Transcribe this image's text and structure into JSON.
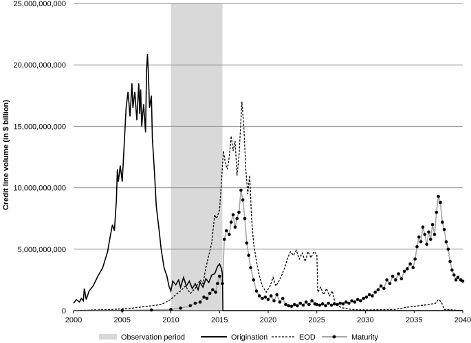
{
  "chart_data": {
    "type": "line",
    "title": "",
    "xlabel": "",
    "ylabel": "Credit line volume (in $ billion)",
    "xlim": [
      2000,
      2040
    ],
    "ylim": [
      0,
      25000000000
    ],
    "x_ticks": [
      "2000",
      "2005",
      "2010",
      "2015",
      "2020",
      "2025",
      "2030",
      "2035",
      "2040"
    ],
    "y_ticks": [
      "0",
      "5,000,000,000",
      "10,000,000,000",
      "15,000,000,000",
      "20,000,000,000",
      "25,000,000,000"
    ],
    "grid": "horizontal",
    "legend_position": "bottom",
    "shaded_region": {
      "name": "Observation period",
      "x_start": 2010.0,
      "x_end": 2015.3,
      "color": "#d9d9d9"
    },
    "series": [
      {
        "name": "Origination",
        "style": "solid",
        "color": "#000000",
        "points": [
          [
            2000.0,
            600000000.0
          ],
          [
            2000.3,
            900000000.0
          ],
          [
            2000.6,
            700000000.0
          ],
          [
            2000.8,
            1000000000.0
          ],
          [
            2001.0,
            800000000.0
          ],
          [
            2001.1,
            1800000000.0
          ],
          [
            2001.3,
            900000000.0
          ],
          [
            2001.6,
            1600000000.0
          ],
          [
            2002.0,
            2000000000.0
          ],
          [
            2002.5,
            2800000000.0
          ],
          [
            2003.0,
            3500000000.0
          ],
          [
            2003.5,
            4800000000.0
          ],
          [
            2003.8,
            6200000000.0
          ],
          [
            2004.0,
            7000000000.0
          ],
          [
            2004.2,
            6500000000.0
          ],
          [
            2004.4,
            9000000000.0
          ],
          [
            2004.5,
            11500000000.0
          ],
          [
            2004.6,
            10500000000.0
          ],
          [
            2004.8,
            11800000000.0
          ],
          [
            2005.0,
            10500000000.0
          ],
          [
            2005.2,
            13500000000.0
          ],
          [
            2005.4,
            16500000000.0
          ],
          [
            2005.6,
            17800000000.0
          ],
          [
            2005.8,
            15800000000.0
          ],
          [
            2006.0,
            18500000000.0
          ],
          [
            2006.1,
            16500000000.0
          ],
          [
            2006.3,
            17800000000.0
          ],
          [
            2006.5,
            15500000000.0
          ],
          [
            2006.7,
            18500000000.0
          ],
          [
            2006.8,
            16000000000.0
          ],
          [
            2006.9,
            18000000000.0
          ],
          [
            2007.0,
            15000000000.0
          ],
          [
            2007.2,
            16800000000.0
          ],
          [
            2007.4,
            14500000000.0
          ],
          [
            2007.5,
            19500000000.0
          ],
          [
            2007.6,
            20900000000.0
          ],
          [
            2007.7,
            19000000000.0
          ],
          [
            2007.8,
            16500000000.0
          ],
          [
            2008.0,
            17500000000.0
          ],
          [
            2008.1,
            14000000000.0
          ],
          [
            2008.3,
            11500000000.0
          ],
          [
            2008.5,
            8500000000.0
          ],
          [
            2008.8,
            6500000000.0
          ],
          [
            2009.0,
            5000000000.0
          ],
          [
            2009.3,
            3500000000.0
          ],
          [
            2009.6,
            2800000000.0
          ],
          [
            2009.8,
            2000000000.0
          ],
          [
            2010.0,
            1600000000.0
          ],
          [
            2010.2,
            2400000000.0
          ],
          [
            2010.5,
            2100000000.0
          ],
          [
            2010.8,
            2500000000.0
          ],
          [
            2011.0,
            1900000000.0
          ],
          [
            2011.3,
            2700000000.0
          ],
          [
            2011.6,
            2000000000.0
          ],
          [
            2011.9,
            2400000000.0
          ],
          [
            2012.2,
            1800000000.0
          ],
          [
            2012.5,
            2200000000.0
          ],
          [
            2012.8,
            1700000000.0
          ],
          [
            2013.0,
            2300000000.0
          ],
          [
            2013.3,
            1900000000.0
          ],
          [
            2013.6,
            2600000000.0
          ],
          [
            2013.9,
            2300000000.0
          ],
          [
            2014.2,
            2900000000.0
          ],
          [
            2014.5,
            3000000000.0
          ],
          [
            2014.8,
            3600000000.0
          ],
          [
            2015.0,
            3800000000.0
          ],
          [
            2015.2,
            3400000000.0
          ],
          [
            2015.3,
            3000000000.0
          ],
          [
            2015.35,
            0.0
          ],
          [
            2040.0,
            0.0
          ]
        ]
      },
      {
        "name": "EOD",
        "style": "dashed",
        "color": "#000000",
        "points": [
          [
            2000.0,
            0.0
          ],
          [
            2004.0,
            100000000.0
          ],
          [
            2006.0,
            200000000.0
          ],
          [
            2008.0,
            400000000.0
          ],
          [
            2009.0,
            500000000.0
          ],
          [
            2010.0,
            900000000.0
          ],
          [
            2010.5,
            1300000000.0
          ],
          [
            2011.0,
            1600000000.0
          ],
          [
            2011.5,
            2000000000.0
          ],
          [
            2012.0,
            1400000000.0
          ],
          [
            2012.5,
            1800000000.0
          ],
          [
            2013.0,
            2500000000.0
          ],
          [
            2013.3,
            2200000000.0
          ],
          [
            2013.6,
            3500000000.0
          ],
          [
            2013.9,
            4500000000.0
          ],
          [
            2014.2,
            5500000000.0
          ],
          [
            2014.5,
            7800000000.0
          ],
          [
            2014.7,
            7500000000.0
          ],
          [
            2015.0,
            8200000000.0
          ],
          [
            2015.2,
            10500000000.0
          ],
          [
            2015.4,
            13000000000.0
          ],
          [
            2015.6,
            12000000000.0
          ],
          [
            2015.8,
            11500000000.0
          ],
          [
            2016.0,
            12500000000.0
          ],
          [
            2016.2,
            14200000000.0
          ],
          [
            2016.4,
            13000000000.0
          ],
          [
            2016.6,
            13800000000.0
          ],
          [
            2016.8,
            11000000000.0
          ],
          [
            2017.0,
            12500000000.0
          ],
          [
            2017.2,
            15500000000.0
          ],
          [
            2017.3,
            17000000000.0
          ],
          [
            2017.5,
            15000000000.0
          ],
          [
            2017.7,
            11500000000.0
          ],
          [
            2017.9,
            9500000000.0
          ],
          [
            2018.1,
            11000000000.0
          ],
          [
            2018.3,
            7500000000.0
          ],
          [
            2018.5,
            5500000000.0
          ],
          [
            2018.8,
            4000000000.0
          ],
          [
            2019.1,
            2800000000.0
          ],
          [
            2019.4,
            2000000000.0
          ],
          [
            2019.8,
            1500000000.0
          ],
          [
            2020.2,
            2000000000.0
          ],
          [
            2020.5,
            2700000000.0
          ],
          [
            2020.8,
            2000000000.0
          ],
          [
            2021.1,
            2400000000.0
          ],
          [
            2021.4,
            2900000000.0
          ],
          [
            2021.7,
            3500000000.0
          ],
          [
            2022.0,
            4300000000.0
          ],
          [
            2022.3,
            4800000000.0
          ],
          [
            2022.6,
            4500000000.0
          ],
          [
            2022.9,
            4900000000.0
          ],
          [
            2023.2,
            4200000000.0
          ],
          [
            2023.5,
            4700000000.0
          ],
          [
            2023.8,
            4000000000.0
          ],
          [
            2024.1,
            4800000000.0
          ],
          [
            2024.4,
            4300000000.0
          ],
          [
            2024.7,
            4800000000.0
          ],
          [
            2025.0,
            4600000000.0
          ],
          [
            2025.1,
            1500000000.0
          ],
          [
            2025.4,
            1900000000.0
          ],
          [
            2025.7,
            1300000000.0
          ],
          [
            2026.0,
            1800000000.0
          ],
          [
            2026.3,
            1200000000.0
          ],
          [
            2026.6,
            1600000000.0
          ],
          [
            2026.9,
            500000000.0
          ],
          [
            2027.5,
            250000000.0
          ],
          [
            2028.5,
            100000000.0
          ],
          [
            2030.0,
            50000000.0
          ],
          [
            2033.0,
            100000000.0
          ],
          [
            2034.5,
            300000000.0
          ],
          [
            2035.5,
            400000000.0
          ],
          [
            2036.5,
            500000000.0
          ],
          [
            2037.2,
            600000000.0
          ],
          [
            2037.5,
            900000000.0
          ],
          [
            2037.8,
            700000000.0
          ],
          [
            2038.1,
            100000000.0
          ],
          [
            2040.0,
            0.0
          ]
        ]
      },
      {
        "name": "Maturity",
        "style": "solid-markers",
        "color": "#000000",
        "line_color": "#a6a6a6",
        "points": [
          [
            2000.0,
            0.0
          ],
          [
            2005.0,
            20000000.0
          ],
          [
            2008.0,
            50000000.0
          ],
          [
            2010.0,
            100000000.0
          ],
          [
            2011.0,
            200000000.0
          ],
          [
            2012.0,
            400000000.0
          ],
          [
            2012.5,
            600000000.0
          ],
          [
            2013.0,
            700000000.0
          ],
          [
            2013.4,
            1100000000.0
          ],
          [
            2013.7,
            1000000000.0
          ],
          [
            2014.0,
            1400000000.0
          ],
          [
            2014.3,
            1700000000.0
          ],
          [
            2014.6,
            1500000000.0
          ],
          [
            2014.8,
            2200000000.0
          ],
          [
            2015.0,
            2800000000.0
          ],
          [
            2015.3,
            2200000000.0
          ],
          [
            2015.5,
            5800000000.0
          ],
          [
            2015.7,
            6500000000.0
          ],
          [
            2016.0,
            6200000000.0
          ],
          [
            2016.2,
            7200000000.0
          ],
          [
            2016.4,
            7800000000.0
          ],
          [
            2016.6,
            6800000000.0
          ],
          [
            2016.8,
            7500000000.0
          ],
          [
            2017.0,
            8000000000.0
          ],
          [
            2017.2,
            9800000000.0
          ],
          [
            2017.4,
            9000000000.0
          ],
          [
            2017.6,
            7500000000.0
          ],
          [
            2017.8,
            5500000000.0
          ],
          [
            2018.0,
            4500000000.0
          ],
          [
            2018.2,
            3500000000.0
          ],
          [
            2018.5,
            2500000000.0
          ],
          [
            2018.8,
            1600000000.0
          ],
          [
            2019.1,
            1200000000.0
          ],
          [
            2019.4,
            1000000000.0
          ],
          [
            2019.7,
            1100000000.0
          ],
          [
            2020.0,
            900000000.0
          ],
          [
            2020.3,
            1200000000.0
          ],
          [
            2020.6,
            800000000.0
          ],
          [
            2020.9,
            1300000000.0
          ],
          [
            2021.2,
            700000000.0
          ],
          [
            2021.5,
            1000000000.0
          ],
          [
            2021.8,
            500000000.0
          ],
          [
            2022.1,
            400000000.0
          ],
          [
            2022.4,
            350000000.0
          ],
          [
            2022.7,
            500000000.0
          ],
          [
            2023.0,
            400000000.0
          ],
          [
            2023.3,
            600000000.0
          ],
          [
            2023.6,
            450000000.0
          ],
          [
            2023.9,
            700000000.0
          ],
          [
            2024.2,
            500000000.0
          ],
          [
            2024.5,
            800000000.0
          ],
          [
            2024.8,
            550000000.0
          ],
          [
            2025.0,
            500000000.0
          ],
          [
            2025.3,
            450000000.0
          ],
          [
            2025.6,
            550000000.0
          ],
          [
            2025.9,
            400000000.0
          ],
          [
            2026.2,
            600000000.0
          ],
          [
            2026.5,
            450000000.0
          ],
          [
            2026.8,
            550000000.0
          ],
          [
            2027.1,
            500000000.0
          ],
          [
            2027.4,
            600000000.0
          ],
          [
            2027.7,
            550000000.0
          ],
          [
            2028.0,
            700000000.0
          ],
          [
            2028.3,
            600000000.0
          ],
          [
            2028.6,
            800000000.0
          ],
          [
            2028.9,
            700000000.0
          ],
          [
            2029.2,
            900000000.0
          ],
          [
            2029.5,
            800000000.0
          ],
          [
            2029.8,
            1000000000.0
          ],
          [
            2030.1,
            1100000000.0
          ],
          [
            2030.4,
            1300000000.0
          ],
          [
            2030.7,
            1200000000.0
          ],
          [
            2031.0,
            1500000000.0
          ],
          [
            2031.3,
            1700000000.0
          ],
          [
            2031.6,
            2000000000.0
          ],
          [
            2031.9,
            1800000000.0
          ],
          [
            2032.2,
            2500000000.0
          ],
          [
            2032.5,
            2200000000.0
          ],
          [
            2032.8,
            2800000000.0
          ],
          [
            2033.1,
            2500000000.0
          ],
          [
            2033.4,
            3000000000.0
          ],
          [
            2033.7,
            2600000000.0
          ],
          [
            2034.0,
            3200000000.0
          ],
          [
            2034.3,
            3400000000.0
          ],
          [
            2034.6,
            3800000000.0
          ],
          [
            2034.9,
            3500000000.0
          ],
          [
            2035.1,
            4200000000.0
          ],
          [
            2035.3,
            5200000000.0
          ],
          [
            2035.5,
            6000000000.0
          ],
          [
            2035.7,
            5600000000.0
          ],
          [
            2035.9,
            6800000000.0
          ],
          [
            2036.1,
            6200000000.0
          ],
          [
            2036.3,
            5400000000.0
          ],
          [
            2036.5,
            6400000000.0
          ],
          [
            2036.7,
            5800000000.0
          ],
          [
            2036.9,
            7000000000.0
          ],
          [
            2037.1,
            6200000000.0
          ],
          [
            2037.3,
            8000000000.0
          ],
          [
            2037.5,
            9300000000.0
          ],
          [
            2037.7,
            8800000000.0
          ],
          [
            2037.9,
            7200000000.0
          ],
          [
            2038.1,
            6600000000.0
          ],
          [
            2038.3,
            5600000000.0
          ],
          [
            2038.5,
            5000000000.0
          ],
          [
            2038.7,
            4000000000.0
          ],
          [
            2038.9,
            3300000000.0
          ],
          [
            2039.1,
            2900000000.0
          ],
          [
            2039.3,
            2500000000.0
          ],
          [
            2039.5,
            2700000000.0
          ],
          [
            2039.8,
            2500000000.0
          ],
          [
            2040.0,
            2400000000.0
          ]
        ]
      }
    ]
  }
}
